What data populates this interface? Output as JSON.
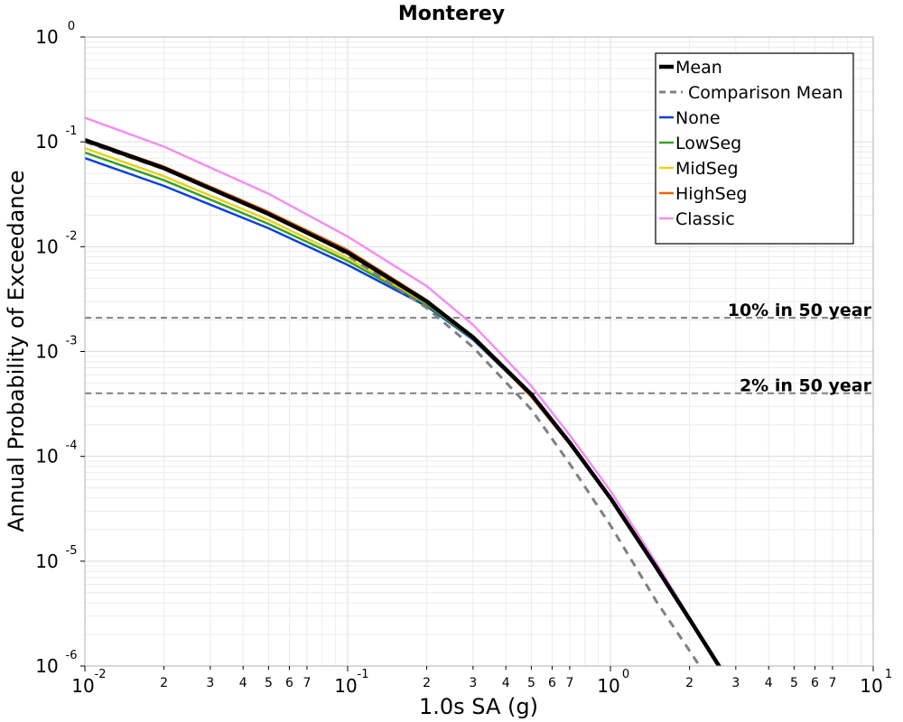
{
  "chart_data": {
    "type": "line",
    "title": "Monterey",
    "xlabel": "1.0s SA (g)",
    "ylabel": "Annual Probability of Exceedance",
    "x_scale": "log",
    "y_scale": "log",
    "xlim": [
      0.01,
      10
    ],
    "ylim": [
      1e-06,
      1
    ],
    "grid": true,
    "legend_position": "top-right",
    "x_major_ticks": [
      {
        "base": "10",
        "exp": "-2",
        "value": 0.01
      },
      {
        "base": "10",
        "exp": "-1",
        "value": 0.1
      },
      {
        "base": "10",
        "exp": "0",
        "value": 1
      },
      {
        "base": "10",
        "exp": "1",
        "value": 10
      }
    ],
    "x_minor_tick_labels": [
      "2",
      "3",
      "4",
      "5",
      "6",
      "7"
    ],
    "y_major_ticks": [
      {
        "base": "10",
        "exp": "0",
        "value": 1
      },
      {
        "base": "10",
        "exp": "-1",
        "value": 0.1
      },
      {
        "base": "10",
        "exp": "-2",
        "value": 0.01
      },
      {
        "base": "10",
        "exp": "-3",
        "value": 0.001
      },
      {
        "base": "10",
        "exp": "-4",
        "value": 0.0001
      },
      {
        "base": "10",
        "exp": "-5",
        "value": 1e-05
      },
      {
        "base": "10",
        "exp": "-6",
        "value": 1e-06
      }
    ],
    "reference_lines": [
      {
        "label": "10% in 50 year",
        "y": 0.0021,
        "color": "#808080"
      },
      {
        "label": "2% in 50 year",
        "y": 0.0004,
        "color": "#808080"
      }
    ],
    "series": [
      {
        "name": "None",
        "color": "#0a3fe0",
        "width": 2.5,
        "dash": "",
        "x": [
          0.01,
          0.02,
          0.05,
          0.1,
          0.2,
          0.3,
          0.5,
          0.7,
          1.0,
          1.5,
          2.0,
          2.7
        ],
        "y": [
          0.07,
          0.038,
          0.015,
          0.0067,
          0.0027,
          0.0013,
          0.00038,
          0.000135,
          4e-05,
          8.6e-06,
          2.8e-06,
          8.5e-07
        ]
      },
      {
        "name": "LowSeg",
        "color": "#3aa02a",
        "width": 2.5,
        "dash": "",
        "x": [
          0.01,
          0.02,
          0.05,
          0.1,
          0.2,
          0.3,
          0.5,
          0.7,
          1.0,
          1.5,
          2.0,
          2.7
        ],
        "y": [
          0.079,
          0.043,
          0.0165,
          0.0073,
          0.0028,
          0.00132,
          0.00038,
          0.000135,
          4e-05,
          8.6e-06,
          2.8e-06,
          8.5e-07
        ]
      },
      {
        "name": "MidSeg",
        "color": "#e8d21a",
        "width": 2.5,
        "dash": "",
        "x": [
          0.01,
          0.02,
          0.05,
          0.1,
          0.2,
          0.3,
          0.5,
          0.7,
          1.0,
          1.5,
          2.0,
          2.7
        ],
        "y": [
          0.087,
          0.047,
          0.018,
          0.0078,
          0.0029,
          0.00134,
          0.00038,
          0.000135,
          4e-05,
          8.6e-06,
          2.8e-06,
          8.5e-07
        ]
      },
      {
        "name": "HighSeg",
        "color": "#e8650f",
        "width": 2.5,
        "dash": "",
        "x": [
          0.01,
          0.02,
          0.05,
          0.1,
          0.2,
          0.3,
          0.5,
          0.7,
          1.0,
          1.5,
          2.0,
          2.7
        ],
        "y": [
          0.106,
          0.058,
          0.0215,
          0.0093,
          0.0031,
          0.00138,
          0.00037,
          0.00013,
          4e-05,
          8.6e-06,
          2.8e-06,
          8.5e-07
        ]
      },
      {
        "name": "Classic",
        "color": "#f58ef2",
        "width": 2.5,
        "dash": "",
        "x": [
          0.01,
          0.02,
          0.05,
          0.1,
          0.2,
          0.3,
          0.5,
          0.7,
          1.0,
          1.5,
          2.0,
          2.7
        ],
        "y": [
          0.17,
          0.09,
          0.032,
          0.0125,
          0.0042,
          0.0018,
          0.00047,
          0.00016,
          4.7e-05,
          9.5e-06,
          2.9e-06,
          8.5e-07
        ]
      },
      {
        "name": "Comparison Mean",
        "color": "#808080",
        "width": 3,
        "dash": "9,7",
        "x": [
          0.01,
          0.02,
          0.05,
          0.08,
          0.1,
          0.2,
          0.3,
          0.5,
          0.7,
          1.0,
          1.5,
          2.0,
          2.5
        ],
        "y": [
          0.1,
          0.055,
          0.0205,
          0.0118,
          0.0083,
          0.0026,
          0.0011,
          0.00028,
          8.5e-05,
          2.2e-05,
          4.1e-06,
          1.4e-06,
          6e-07
        ]
      },
      {
        "name": "Mean",
        "color": "#000000",
        "width": 4.5,
        "dash": "",
        "x": [
          0.01,
          0.02,
          0.05,
          0.1,
          0.2,
          0.3,
          0.5,
          0.7,
          1.0,
          1.5,
          2.0,
          2.7
        ],
        "y": [
          0.104,
          0.056,
          0.0205,
          0.0088,
          0.003,
          0.00137,
          0.00039,
          0.000135,
          4e-05,
          8.6e-06,
          2.8e-06,
          8.5e-07
        ]
      }
    ],
    "legend_order": [
      "Mean",
      "Comparison Mean",
      "None",
      "LowSeg",
      "MidSeg",
      "HighSeg",
      "Classic"
    ]
  }
}
